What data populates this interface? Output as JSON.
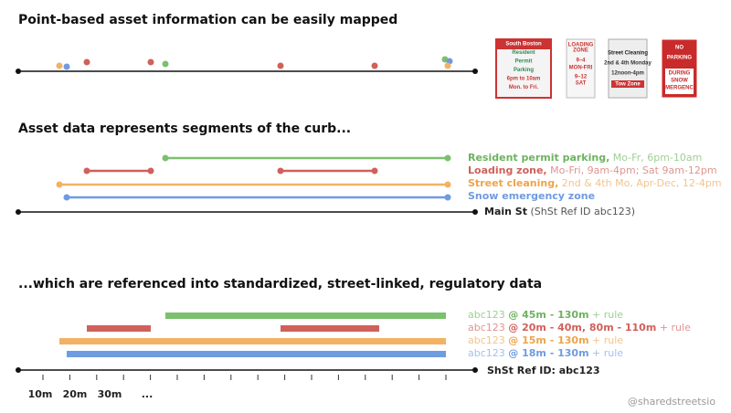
{
  "sections": [
    {
      "title": "Point-based asset information can be easily mapped"
    },
    {
      "title": "Asset data represents segments of the curb..."
    },
    {
      "title": "...which are referenced into standardized, street-linked, regulatory data"
    }
  ],
  "signs": [
    {
      "lines": [
        "South Boston",
        "Resident",
        "Permit",
        "Parking",
        "6pm to 10am",
        "Mon. to Fri."
      ]
    },
    {
      "lines": [
        "LOADING",
        "ZONE",
        "9–4",
        "MON-FRI",
        "9–12",
        "SAT"
      ]
    },
    {
      "lines": [
        "Street Cleaning",
        "2nd & 4th Monday",
        "12noon-4pm",
        "Tow Zone"
      ]
    },
    {
      "lines": [
        "NO",
        "PARKING",
        "DURING",
        "SNOW",
        "EMERGENCY"
      ]
    }
  ],
  "segments": [
    {
      "name": "Resident permit parking,",
      "detail": "Mo-Fr, 6pm-10am"
    },
    {
      "name": "Loading zone,",
      "detail": "Mo-Fri, 9am-4pm; Sat 9am-12pm"
    },
    {
      "name": "Street cleaning,",
      "detail": "2nd & 4th Mo, Apr-Dec, 12-4pm"
    },
    {
      "name": "Snow emergency zone",
      "detail": ""
    }
  ],
  "street": {
    "name": "Main St",
    "ref": "(ShSt Ref ID abc123)"
  },
  "references": [
    {
      "id": "abc123",
      "range": "@ 45m - 130m",
      "suffix": "+ rule"
    },
    {
      "id": "abc123",
      "range": "@ 20m - 40m, 80m - 110m",
      "suffix": "+ rule"
    },
    {
      "id": "abc123",
      "range": "@ 15m - 130m",
      "suffix": "+ rule"
    },
    {
      "id": "abc123",
      "range": "@ 18m - 130m",
      "suffix": "+ rule"
    }
  ],
  "ref_line_label": "ShSt Ref ID: abc123",
  "scale_labels": [
    "10m",
    "20m",
    "30m",
    "..."
  ],
  "footer": "@sharedstreetsio"
}
